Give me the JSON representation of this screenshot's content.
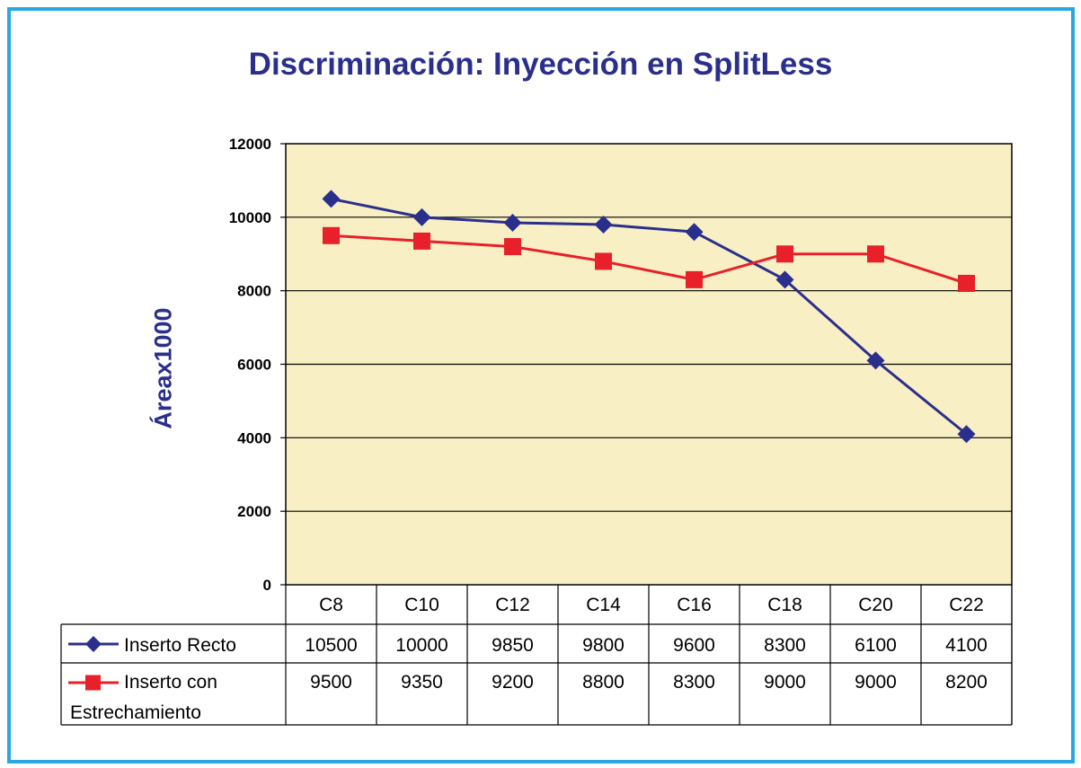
{
  "chart_data": {
    "type": "line",
    "title": "Discriminación: Inyección en SplitLess",
    "ylabel": "Áreax1000",
    "xlabel": "",
    "ylim": [
      0,
      12000
    ],
    "yticks": [
      "0",
      "2000",
      "4000",
      "6000",
      "8000",
      "10000",
      "12000"
    ],
    "categories": [
      "C8",
      "C10",
      "C12",
      "C14",
      "C16",
      "C18",
      "C20",
      "C22"
    ],
    "grid": true,
    "legend": "data-table",
    "series": [
      {
        "name": "Inserto Recto",
        "name_lines": [
          "Inserto Recto"
        ],
        "marker": "diamond",
        "color": "#2b2f8c",
        "values": [
          10500,
          10000,
          9850,
          9800,
          9600,
          8300,
          6100,
          4100
        ],
        "labels": [
          "10500",
          "10000",
          "9850",
          "9800",
          "9600",
          "8300",
          "6100",
          "4100"
        ]
      },
      {
        "name": "Inserto con Estrechamiento",
        "name_lines": [
          "Inserto con",
          "Estrechamiento"
        ],
        "marker": "square",
        "color": "#e8202a",
        "values": [
          9500,
          9350,
          9200,
          8800,
          8300,
          9000,
          9000,
          8200
        ],
        "labels": [
          "9500",
          "9350",
          "9200",
          "8800",
          "8300",
          "9000",
          "9000",
          "8200"
        ]
      }
    ],
    "colors": {
      "plot_bg": "#f8efc4",
      "frame": "#29a8e0",
      "title": "#2b2f8c"
    }
  }
}
